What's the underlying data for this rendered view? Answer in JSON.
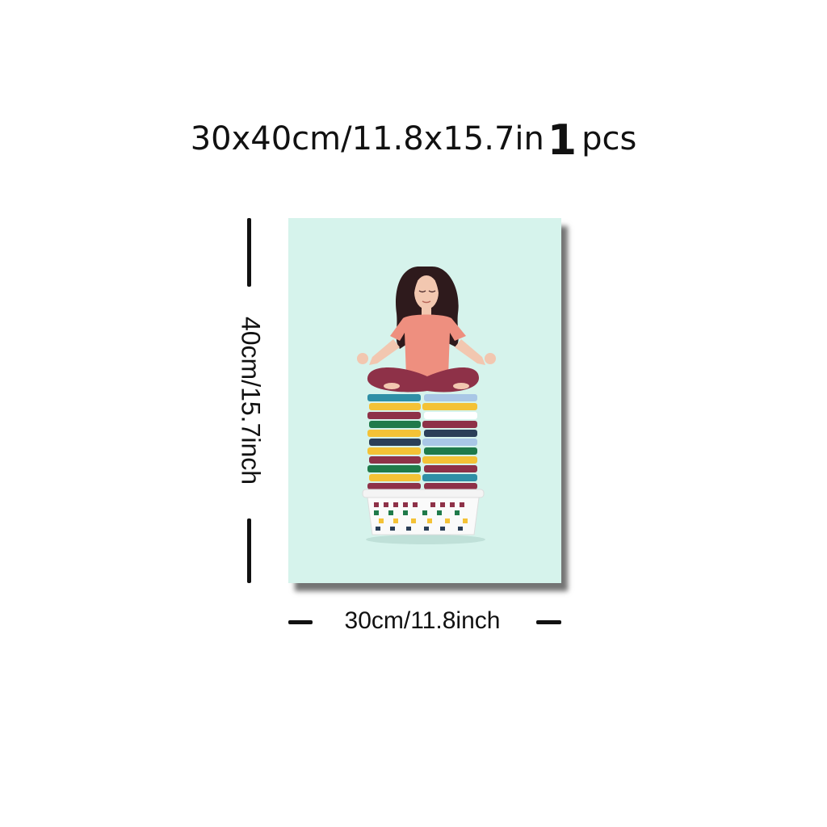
{
  "headline": {
    "size": "30x40cm/11.8x15.7in",
    "quantity": "1",
    "unit": "pcs"
  },
  "dimensions": {
    "height_label": "40cm/15.7inch",
    "width_label": "30cm/11.8inch"
  },
  "poster": {
    "subject": "meditating woman on stacks of folded laundry in a basket",
    "background_color": "#d6f3ec"
  }
}
